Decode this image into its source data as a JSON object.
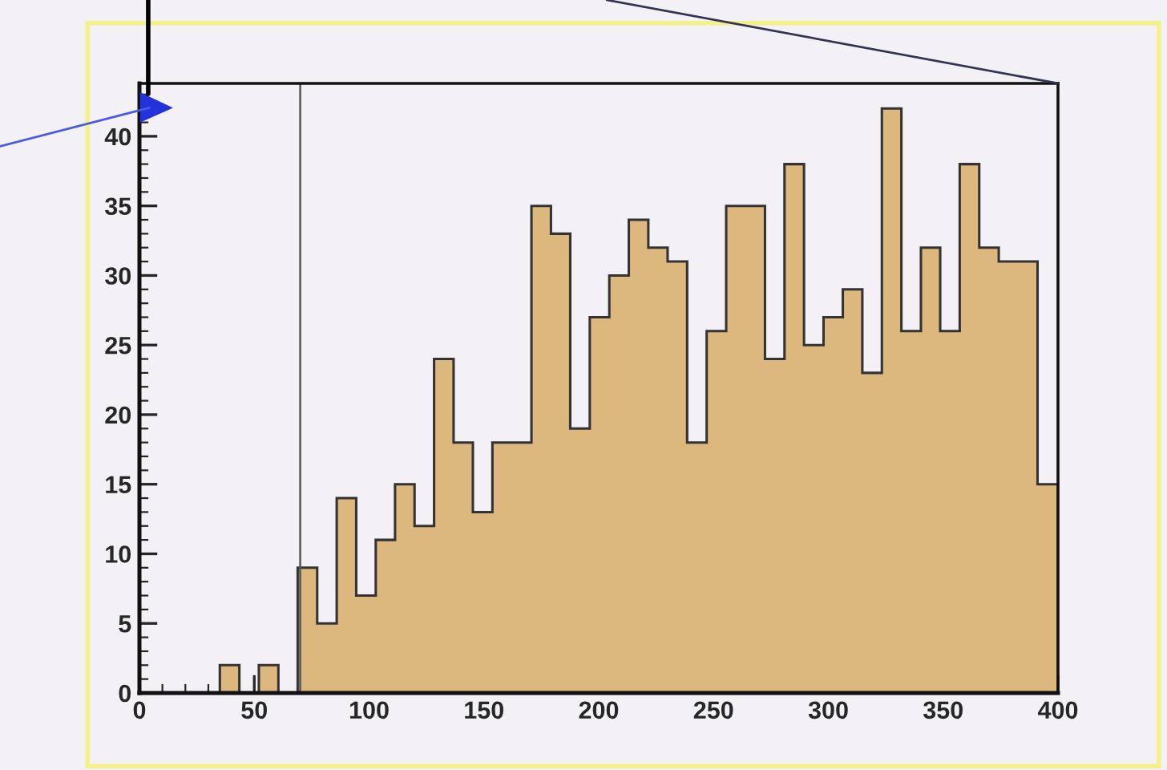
{
  "chart_data": {
    "type": "histogram",
    "color": "#dcb77e",
    "bins": [
      35.0,
      43.5,
      52.0,
      60.5,
      68.9,
      77.4,
      85.9,
      94.4,
      102.9,
      111.3,
      119.8,
      128.3,
      136.8,
      145.2,
      153.7,
      162.2,
      170.7,
      179.2,
      187.6,
      196.1,
      204.6,
      213.1,
      221.6,
      230.0,
      238.5,
      247.0,
      255.5,
      264.0,
      272.4,
      280.9,
      289.4,
      297.9,
      306.3,
      314.8,
      323.3,
      331.8,
      340.3,
      348.7,
      357.2,
      365.7,
      374.2,
      382.7,
      391.1,
      400.0
    ],
    "values": [
      2,
      0,
      2,
      0,
      9,
      5,
      14,
      7,
      11,
      15,
      12,
      24,
      18,
      13,
      18,
      18,
      35,
      33,
      19,
      27,
      30,
      34,
      32,
      31,
      18,
      26,
      35,
      35,
      24,
      38,
      25,
      27,
      29,
      23,
      42,
      26,
      32,
      26,
      38,
      32,
      31,
      31,
      15
    ],
    "xlim": [
      0,
      400
    ],
    "xticks": [
      0,
      50,
      100,
      150,
      200,
      250,
      300,
      350,
      400
    ],
    "ylim": [
      0,
      43.8
    ],
    "yticks": [
      0,
      5,
      10,
      15,
      20,
      25,
      30,
      35,
      40
    ],
    "ref_lines": [
      {
        "axis": "x",
        "value": 70,
        "color": "#555555"
      }
    ],
    "grid": false
  }
}
